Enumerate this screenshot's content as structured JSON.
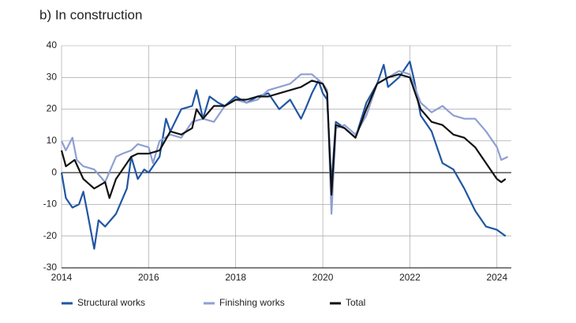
{
  "chart_data": {
    "type": "line",
    "title": "b)  In construction",
    "xlim": [
      2014,
      2024.33
    ],
    "xticks": [
      2014,
      2016,
      2018,
      2020,
      2022,
      2024
    ],
    "ylim": [
      -30,
      40
    ],
    "yticks": [
      -30,
      -20,
      -10,
      0,
      10,
      20,
      30,
      40
    ],
    "grid": true,
    "legend": "bottom",
    "series": [
      {
        "name": "Structural works",
        "color": "#1f56a3",
        "x": [
          2014,
          2014.1,
          2014.25,
          2014.4,
          2014.5,
          2014.6,
          2014.75,
          2014.85,
          2015,
          2015.25,
          2015.5,
          2015.6,
          2015.75,
          2015.9,
          2016,
          2016.25,
          2016.4,
          2016.5,
          2016.75,
          2017,
          2017.1,
          2017.25,
          2017.4,
          2017.6,
          2017.75,
          2018,
          2018.25,
          2018.5,
          2018.75,
          2019,
          2019.25,
          2019.5,
          2019.6,
          2019.75,
          2019.9,
          2020,
          2020.1,
          2020.2,
          2020.3,
          2020.5,
          2020.75,
          2021,
          2021.25,
          2021.4,
          2021.5,
          2021.75,
          2022,
          2022.1,
          2022.25,
          2022.5,
          2022.75,
          2023,
          2023.25,
          2023.5,
          2023.75,
          2024,
          2024.2
        ],
        "values": [
          0,
          -8,
          -11,
          -10,
          -6,
          -13,
          -24,
          -15,
          -17,
          -13,
          -5,
          5,
          -2,
          1,
          0,
          5,
          17,
          13,
          20,
          21,
          26,
          17,
          24,
          22,
          21,
          24,
          22,
          24,
          25,
          20,
          23,
          17,
          20,
          25,
          29,
          25,
          23,
          -4,
          16,
          14,
          11,
          22,
          28,
          34,
          27,
          30,
          35,
          29,
          18,
          13,
          3,
          1,
          -5,
          -12,
          -17,
          -18,
          -20
        ]
      },
      {
        "name": "Finishing works",
        "color": "#8e9fd2",
        "x": [
          2014,
          2014.1,
          2014.25,
          2014.35,
          2014.5,
          2014.75,
          2015,
          2015.25,
          2015.4,
          2015.6,
          2015.75,
          2016,
          2016.1,
          2016.25,
          2016.5,
          2016.75,
          2017,
          2017.25,
          2017.5,
          2017.75,
          2018,
          2018.25,
          2018.5,
          2018.75,
          2019,
          2019.25,
          2019.5,
          2019.75,
          2020,
          2020.1,
          2020.2,
          2020.3,
          2020.5,
          2020.75,
          2021,
          2021.25,
          2021.5,
          2021.75,
          2022,
          2022.25,
          2022.5,
          2022.75,
          2023,
          2023.25,
          2023.5,
          2023.75,
          2024,
          2024.1,
          2024.25
        ],
        "values": [
          10,
          7,
          11,
          4,
          2,
          1,
          -3,
          5,
          6,
          7,
          9,
          8,
          3,
          10,
          12,
          11,
          16,
          17,
          16,
          21,
          23,
          22,
          23,
          26,
          27,
          28,
          31,
          31,
          28,
          26,
          -13,
          14,
          15,
          12,
          18,
          28,
          30,
          32,
          31,
          22,
          19,
          21,
          18,
          17,
          17,
          13,
          8,
          4,
          5
        ]
      },
      {
        "name": "Total",
        "color": "#111111",
        "x": [
          2014,
          2014.1,
          2014.3,
          2014.5,
          2014.75,
          2015,
          2015.1,
          2015.25,
          2015.5,
          2015.6,
          2015.75,
          2016,
          2016.25,
          2016.5,
          2016.75,
          2017,
          2017.1,
          2017.25,
          2017.5,
          2017.75,
          2018,
          2018.25,
          2018.5,
          2018.75,
          2019,
          2019.25,
          2019.5,
          2019.75,
          2020,
          2020.1,
          2020.2,
          2020.3,
          2020.5,
          2020.75,
          2021,
          2021.25,
          2021.5,
          2021.75,
          2022,
          2022.25,
          2022.5,
          2022.75,
          2023,
          2023.25,
          2023.5,
          2023.75,
          2024,
          2024.1,
          2024.2
        ],
        "values": [
          7,
          2,
          4,
          -2,
          -5,
          -3,
          -8,
          -2,
          3,
          5,
          6,
          6,
          7,
          13,
          12,
          14,
          20,
          17,
          21,
          21,
          23,
          23,
          24,
          24,
          25,
          26,
          27,
          29,
          28,
          25,
          -7,
          15,
          14,
          11,
          20,
          28,
          30,
          31,
          30,
          20,
          16,
          15,
          12,
          11,
          8,
          3,
          -2,
          -3,
          -2
        ]
      }
    ]
  }
}
